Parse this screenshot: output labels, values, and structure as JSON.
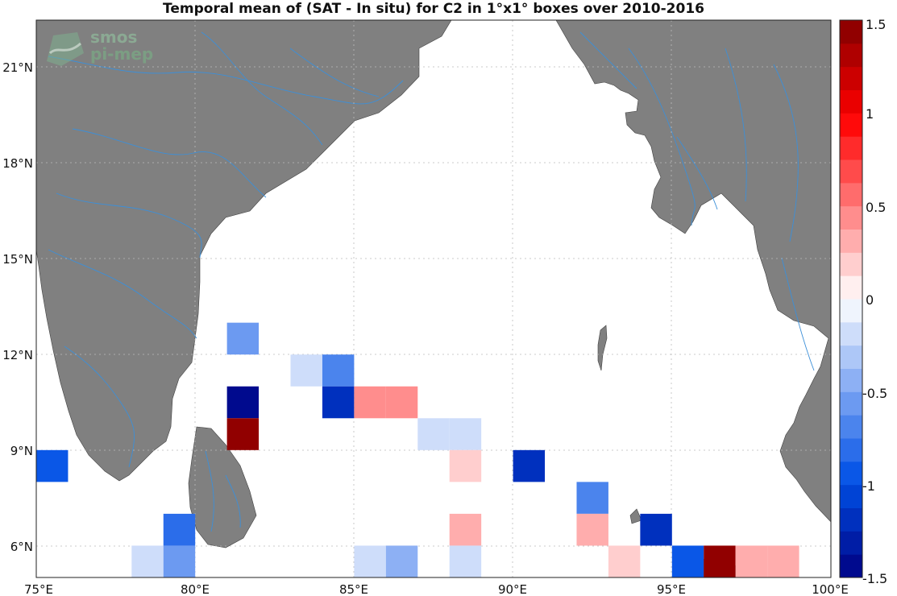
{
  "title": "Temporal mean of (SAT - In situ) for C2 in 1°x1° boxes over 2010-2016",
  "logo": {
    "line1": "smos",
    "line2": "pi-mep"
  },
  "chart_data": {
    "type": "heatmap",
    "x_ticks": [
      "75°E",
      "80°E",
      "85°E",
      "90°E",
      "95°E",
      "100°E"
    ],
    "y_ticks": [
      "6°N",
      "9°N",
      "12°N",
      "15°N",
      "18°N",
      "21°N"
    ],
    "xlim": [
      75,
      100
    ],
    "ylim": [
      5,
      22.5
    ],
    "colorbar": {
      "range": [
        -1.5,
        1.5
      ],
      "ticks": [
        "1.5",
        "1",
        "0.5",
        "0",
        "-0.5",
        "-1",
        "-1.5"
      ]
    },
    "cells": [
      {
        "lon": 75,
        "lat": 8,
        "value": -0.9
      },
      {
        "lon": 79,
        "lat": 6,
        "value": -0.8
      },
      {
        "lon": 78,
        "lat": 5,
        "value": -0.15
      },
      {
        "lon": 79,
        "lat": 5,
        "value": -0.55
      },
      {
        "lon": 81,
        "lat": 12,
        "value": -0.55
      },
      {
        "lon": 81,
        "lat": 10,
        "value": -1.5
      },
      {
        "lon": 81,
        "lat": 9,
        "value": 1.45
      },
      {
        "lon": 83,
        "lat": 11,
        "value": -0.15
      },
      {
        "lon": 84,
        "lat": 11,
        "value": -0.7
      },
      {
        "lon": 84,
        "lat": 10,
        "value": -1.2
      },
      {
        "lon": 85,
        "lat": 10,
        "value": 0.4
      },
      {
        "lon": 86,
        "lat": 10,
        "value": 0.4
      },
      {
        "lon": 87,
        "lat": 9,
        "value": -0.25
      },
      {
        "lon": 88,
        "lat": 9,
        "value": -0.25
      },
      {
        "lon": 88,
        "lat": 8,
        "value": 0.15
      },
      {
        "lon": 88,
        "lat": 6,
        "value": 0.3
      },
      {
        "lon": 88,
        "lat": 5,
        "value": -0.15
      },
      {
        "lon": 85,
        "lat": 5,
        "value": -0.15
      },
      {
        "lon": 86,
        "lat": 5,
        "value": -0.45
      },
      {
        "lon": 90,
        "lat": 8,
        "value": -1.2
      },
      {
        "lon": 92,
        "lat": 7,
        "value": -0.65
      },
      {
        "lon": 92,
        "lat": 6,
        "value": 0.3
      },
      {
        "lon": 93,
        "lat": 5,
        "value": 0.15
      },
      {
        "lon": 94,
        "lat": 6,
        "value": -1.2
      },
      {
        "lon": 95,
        "lat": 5,
        "value": -0.9
      },
      {
        "lon": 96,
        "lat": 5,
        "value": 1.5
      },
      {
        "lon": 97,
        "lat": 5,
        "value": 0.35
      },
      {
        "lon": 98,
        "lat": 5,
        "value": 0.35
      }
    ]
  }
}
